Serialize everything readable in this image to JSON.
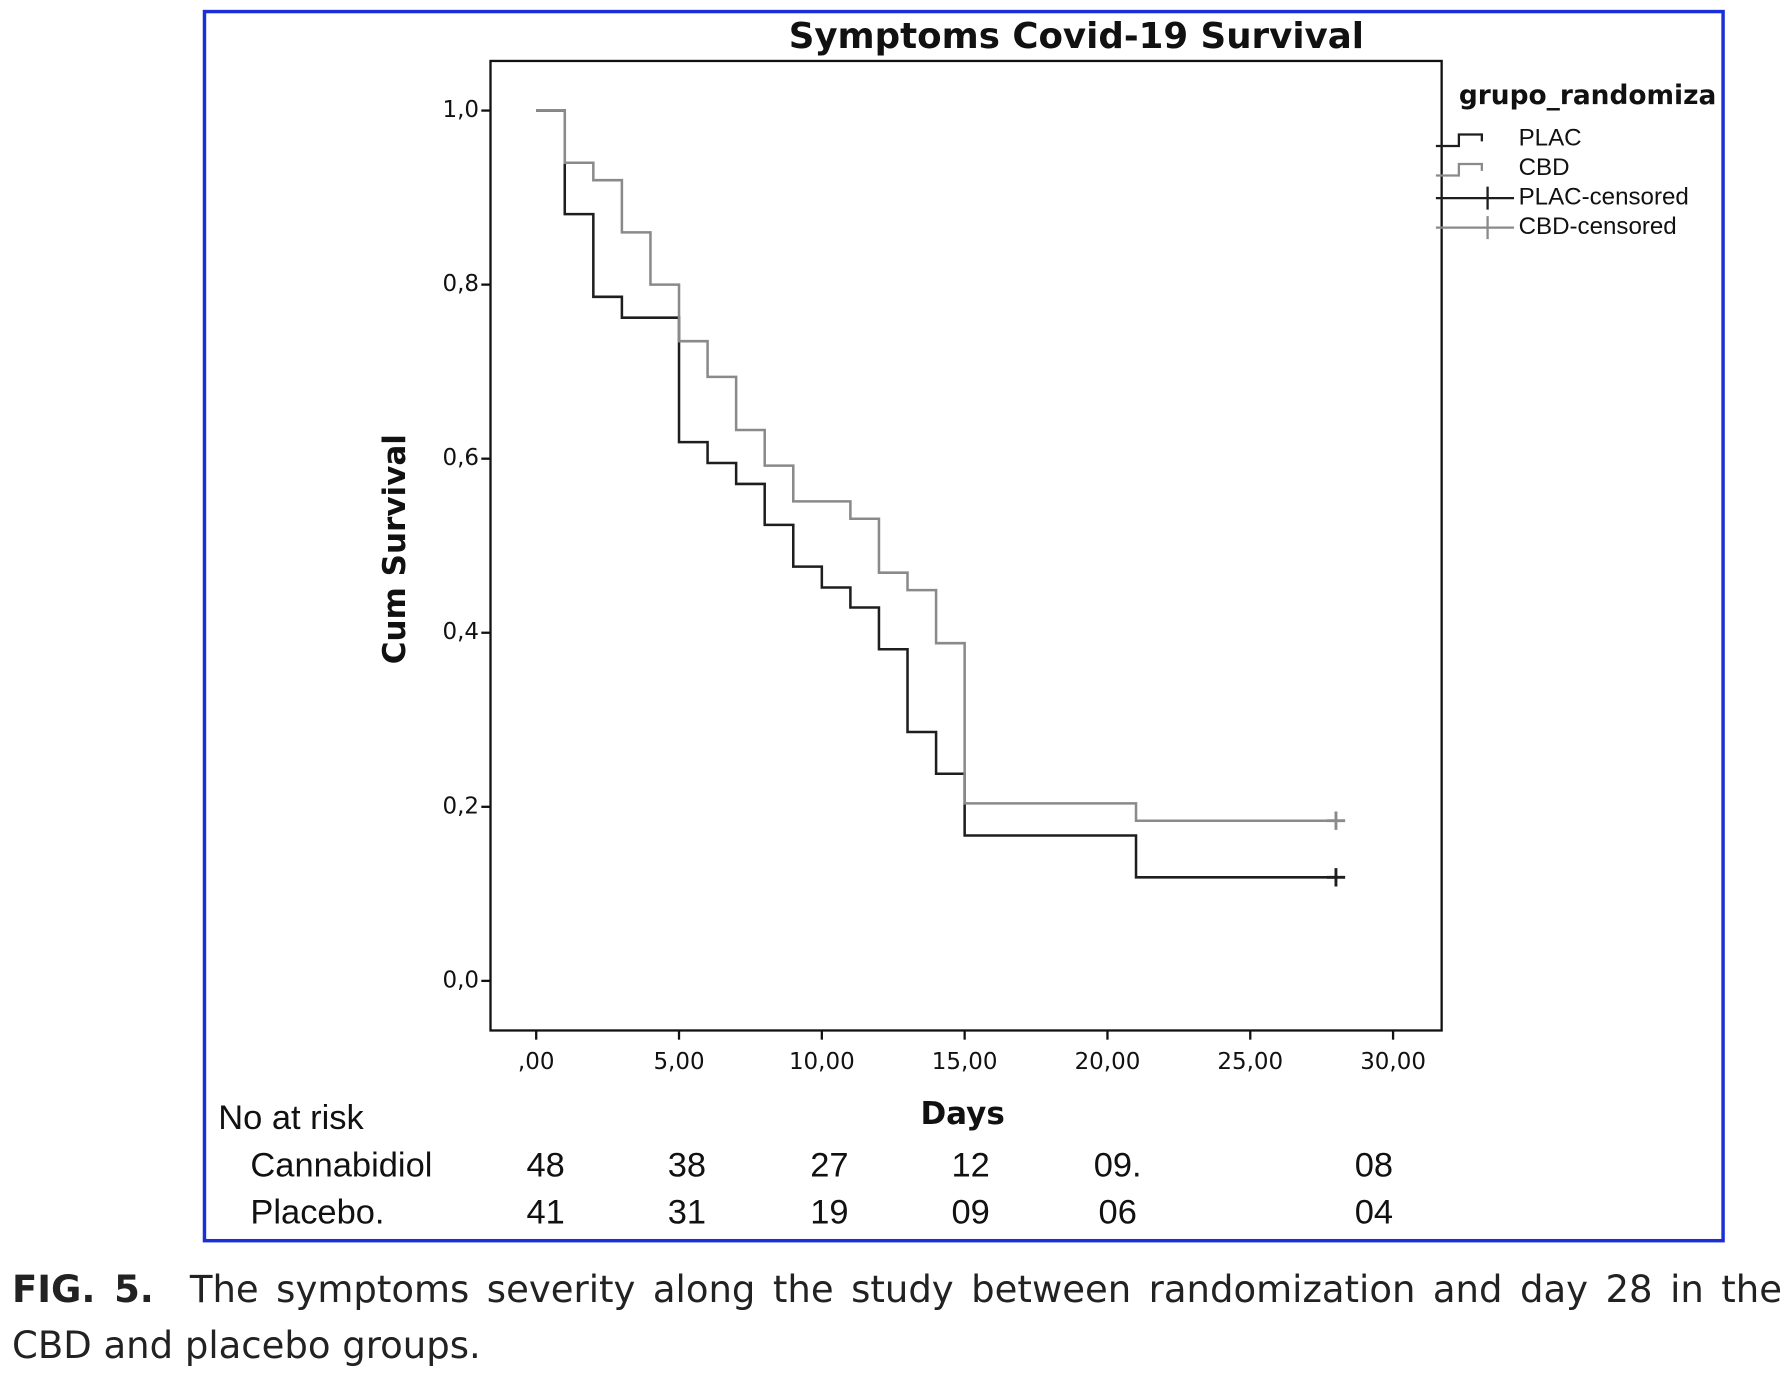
{
  "chart_data": {
    "type": "step",
    "title": "Symptoms Covid-19 Survival",
    "x_label": "Days",
    "y_label": "Cum Survival",
    "legend_title": "grupo_randomiza",
    "legend_position": "right",
    "xlim": [
      -1.6,
      31.7
    ],
    "ylim": [
      -0.057,
      1.057
    ],
    "xticks": [
      {
        "value": 0,
        "label": ",00"
      },
      {
        "value": 5,
        "label": "5,00"
      },
      {
        "value": 10,
        "label": "10,00"
      },
      {
        "value": 15,
        "label": "15,00"
      },
      {
        "value": 20,
        "label": "20,00"
      },
      {
        "value": 25,
        "label": "25,00"
      },
      {
        "value": 30,
        "label": "30,00"
      }
    ],
    "yticks": [
      {
        "value": 0,
        "label": "0,0"
      },
      {
        "value": 0.2,
        "label": "0,2"
      },
      {
        "value": 0.4,
        "label": "0,4"
      },
      {
        "value": 0.6,
        "label": "0,6"
      },
      {
        "value": 0.8,
        "label": "0,8"
      },
      {
        "value": 1,
        "label": "1,0"
      }
    ],
    "series": [
      {
        "name": "PLAC",
        "censored_name": "PLAC-censored",
        "color": "#1e1e1e",
        "x": [
          0,
          1,
          2,
          3,
          5,
          6,
          7,
          8,
          9,
          10,
          11,
          12,
          13,
          14,
          15,
          21,
          28
        ],
        "values": [
          1,
          0.881,
          0.786,
          0.762,
          0.619,
          0.595,
          0.571,
          0.524,
          0.476,
          0.452,
          0.429,
          0.381,
          0.286,
          0.238,
          0.167,
          0.119,
          0.119
        ]
      },
      {
        "name": "CBD",
        "censored_name": "CBD-censored",
        "color": "#8a8a8a",
        "x": [
          0,
          1,
          2,
          3,
          4,
          5,
          6,
          7,
          8,
          9,
          11,
          12,
          13,
          14,
          15,
          21,
          28
        ],
        "values": [
          1,
          0.94,
          0.92,
          0.86,
          0.8,
          0.735,
          0.694,
          0.633,
          0.592,
          0.551,
          0.531,
          0.469,
          0.449,
          0.388,
          0.204,
          0.184,
          0.184
        ]
      }
    ],
    "risk_table": {
      "title": "No at risk",
      "rows": [
        {
          "label": "Cannabidiol",
          "values": [
            "48",
            "38",
            "27",
            "12",
            "09.",
            "08"
          ]
        },
        {
          "label": "Placebo.",
          "values": [
            "41",
            "31",
            "19",
            "09",
            "06",
            "04"
          ]
        }
      ]
    }
  },
  "caption": {
    "label": "FIG. 5.",
    "text": "The symptoms severity along the study between randomization and day 28 in the CBD and placebo groups."
  }
}
